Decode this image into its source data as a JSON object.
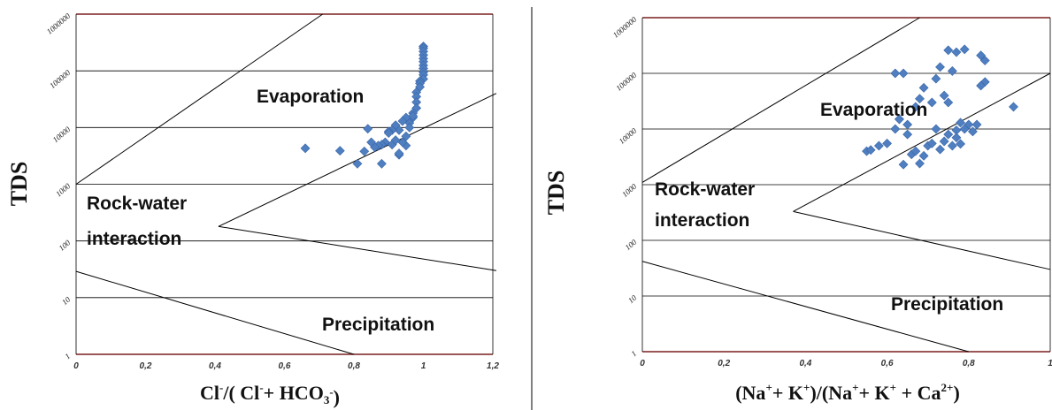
{
  "chart_data": [
    {
      "type": "scatter",
      "ylabel": "TDS",
      "xlabel_parts": [
        "Cl",
        "-",
        "/( Cl",
        "-",
        "+ HCO",
        "3",
        "-",
        ")"
      ],
      "xlim": [
        0,
        1.2
      ],
      "ylim": [
        1,
        1000000
      ],
      "y_scale": "log",
      "x_ticks": [
        "0",
        "0,2",
        "0,4",
        "0,6",
        "0,8",
        "1",
        "1,2"
      ],
      "y_ticks": [
        "1",
        "10",
        "100",
        "1000",
        "10000",
        "100000",
        "1000000"
      ],
      "regions": [
        "Evaporation",
        "Rock-water",
        "interaction",
        "Precipitation"
      ],
      "boundary_lines": [
        {
          "x": [
            0,
            0.71
          ],
          "y": [
            1000,
            1000000
          ]
        },
        {
          "x": [
            0.41,
            1.21
          ],
          "y": [
            180,
            40000
          ]
        },
        {
          "x": [
            0.41,
            1.21
          ],
          "y": [
            180,
            30
          ]
        },
        {
          "x": [
            0,
            0.8
          ],
          "y": [
            29,
            1
          ]
        }
      ],
      "points": {
        "x": [
          1.0,
          1.0,
          1.0,
          1.0,
          1.0,
          1.0,
          1.0,
          1.0,
          1.0,
          1.0,
          1.0,
          0.99,
          0.99,
          0.99,
          0.98,
          0.98,
          0.98,
          0.98,
          0.97,
          0.97,
          0.96,
          0.95,
          0.94,
          0.93,
          0.92,
          0.91,
          0.9,
          0.9,
          0.89,
          0.88,
          0.87,
          0.86,
          0.85,
          0.84,
          0.83,
          0.81,
          0.66,
          0.76,
          0.88,
          0.93,
          0.93,
          0.95,
          0.96,
          0.94,
          0.91,
          0.92,
          0.95,
          0.97
        ],
        "y": [
          270000,
          250000,
          220000,
          190000,
          165000,
          145000,
          125000,
          110000,
          95000,
          85000,
          72000,
          66000,
          60000,
          52000,
          42000,
          35000,
          28000,
          22000,
          18000,
          15000,
          12000,
          15000,
          13000,
          9000,
          11000,
          9000,
          8500,
          8000,
          5500,
          5000,
          4800,
          4500,
          5500,
          9500,
          3800,
          2300,
          4300,
          3900,
          2300,
          3300,
          3500,
          4800,
          10000,
          5500,
          5000,
          6000,
          7000,
          16000
        ]
      }
    },
    {
      "type": "scatter",
      "ylabel": "TDS",
      "xlabel_parts": [
        "(Na",
        "+",
        "+ K",
        "+",
        ")/(Na",
        "+",
        "+ K",
        "+",
        " + Ca",
        "2+",
        ")"
      ],
      "xlim": [
        0,
        1
      ],
      "ylim": [
        1,
        1000000
      ],
      "y_scale": "log",
      "x_ticks": [
        "0",
        "0,2",
        "0,4",
        "0,6",
        "0,8",
        "1"
      ],
      "y_ticks": [
        "1",
        "10",
        "100",
        "1000",
        "10000",
        "100000",
        "1000000"
      ],
      "regions": [
        "Evaporation",
        "Rock-water",
        "interaction",
        "Precipitation"
      ],
      "boundary_lines": [
        {
          "x": [
            0,
            0.68
          ],
          "y": [
            1100,
            1000000
          ]
        },
        {
          "x": [
            0.37,
            1.0
          ],
          "y": [
            330,
            100000
          ]
        },
        {
          "x": [
            0.37,
            1.0
          ],
          "y": [
            330,
            30
          ]
        },
        {
          "x": [
            0,
            0.8
          ],
          "y": [
            42,
            1
          ]
        }
      ],
      "points": {
        "x": [
          0.75,
          0.79,
          0.77,
          0.83,
          0.84,
          0.64,
          0.62,
          0.73,
          0.76,
          0.69,
          0.72,
          0.74,
          0.84,
          0.83,
          0.68,
          0.63,
          0.75,
          0.78,
          0.8,
          0.91,
          0.67,
          0.71,
          0.72,
          0.62,
          0.65,
          0.6,
          0.58,
          0.55,
          0.56,
          0.64,
          0.66,
          0.68,
          0.7,
          0.73,
          0.76,
          0.78,
          0.81,
          0.77,
          0.74,
          0.63,
          0.65,
          0.67,
          0.69,
          0.71,
          0.75,
          0.77,
          0.79,
          0.82
        ],
        "y": [
          260000,
          270000,
          240000,
          210000,
          170000,
          100000,
          100000,
          130000,
          110000,
          55000,
          80000,
          40000,
          70000,
          60000,
          35000,
          15000,
          30000,
          13000,
          12000,
          25000,
          25000,
          30000,
          10000,
          10000,
          12000,
          5500,
          5000,
          4000,
          4200,
          2300,
          3500,
          2400,
          5000,
          4300,
          5000,
          5400,
          9000,
          9500,
          6000,
          15000,
          8000,
          4000,
          3300,
          5500,
          8000,
          7000,
          10000,
          12000
        ]
      }
    }
  ]
}
